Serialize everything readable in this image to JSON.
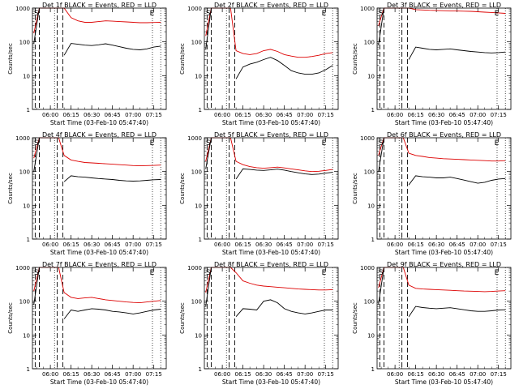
{
  "colors": {
    "events": "#000000",
    "lld": "#dd0000",
    "axis": "#000000"
  },
  "chart_data": [
    {
      "type": "line",
      "title": "Det 1f BLACK = Events, RED = LLD",
      "xlabel": "Start Time (03-Feb-10 05:47:40)",
      "ylabel": "Counts/sec",
      "y_scale": "log",
      "ylim": [
        1,
        1000
      ],
      "y_ticks": [
        "1",
        "10",
        "100",
        "1000"
      ],
      "x_ticks": [
        "06:00",
        "06:15",
        "06:30",
        "06:45",
        "07:00",
        "07:15"
      ],
      "markers": [
        "S",
        "E"
      ],
      "x": [
        "05:48",
        "05:52",
        "06:02",
        "06:06",
        "06:10",
        "06:15",
        "06:20",
        "06:25",
        "06:30",
        "06:35",
        "06:40",
        "06:45",
        "06:50",
        "06:55",
        "07:00",
        "07:05",
        "07:10",
        "07:15",
        "07:20"
      ],
      "series": [
        {
          "name": "LLD",
          "values": [
            180,
            1000,
            1000,
            1000,
            1000,
            520,
            420,
            380,
            380,
            400,
            420,
            410,
            400,
            390,
            380,
            370,
            370,
            375,
            380
          ]
        },
        {
          "name": "Events",
          "values": [
            90,
            1000,
            null,
            null,
            40,
            90,
            85,
            80,
            78,
            82,
            88,
            80,
            72,
            65,
            60,
            58,
            62,
            70,
            75
          ]
        }
      ]
    },
    {
      "type": "line",
      "title": "Det 2f BLACK = Events, RED = LLD",
      "xlabel": "Start Time (03-Feb-10 05:47:40)",
      "ylabel": "Counts/sec",
      "y_scale": "log",
      "ylim": [
        1,
        1000
      ],
      "y_ticks": [
        "1",
        "10",
        "100",
        "1000"
      ],
      "x_ticks": [
        "06:00",
        "06:15",
        "06:30",
        "06:45",
        "07:00",
        "07:15"
      ],
      "markers": [
        "S",
        "E"
      ],
      "x": [
        "05:48",
        "05:52",
        "06:02",
        "06:06",
        "06:10",
        "06:15",
        "06:20",
        "06:25",
        "06:30",
        "06:35",
        "06:40",
        "06:45",
        "06:50",
        "06:55",
        "07:00",
        "07:05",
        "07:10",
        "07:15",
        "07:20"
      ],
      "series": [
        {
          "name": "LLD",
          "values": [
            150,
            1000,
            1000,
            1000,
            55,
            45,
            42,
            45,
            55,
            60,
            52,
            42,
            38,
            35,
            35,
            37,
            40,
            45,
            48
          ]
        },
        {
          "name": "Events",
          "values": [
            60,
            1000,
            null,
            null,
            8,
            18,
            22,
            25,
            30,
            35,
            28,
            20,
            14,
            12,
            11,
            11,
            12,
            15,
            20
          ]
        }
      ]
    },
    {
      "type": "line",
      "title": "Det 3f BLACK = Events, RED = LLD",
      "xlabel": "Start Time (03-Feb-10 05:47:40)",
      "ylabel": "Counts/sec",
      "y_scale": "log",
      "ylim": [
        1,
        1000
      ],
      "y_ticks": [
        "1",
        "10",
        "100",
        "1000"
      ],
      "x_ticks": [
        "06:00",
        "06:15",
        "06:30",
        "06:45",
        "07:00",
        "07:15"
      ],
      "markers": [
        "S",
        "E"
      ],
      "x": [
        "05:48",
        "05:52",
        "06:02",
        "06:06",
        "06:10",
        "06:15",
        "06:20",
        "06:25",
        "06:30",
        "06:35",
        "06:40",
        "06:45",
        "06:50",
        "06:55",
        "07:00",
        "07:05",
        "07:10",
        "07:15",
        "07:20"
      ],
      "series": [
        {
          "name": "LLD",
          "values": [
            300,
            1000,
            1000,
            1000,
            1000,
            900,
            880,
            860,
            850,
            840,
            830,
            820,
            810,
            800,
            780,
            760,
            740,
            720,
            700
          ]
        },
        {
          "name": "Events",
          "values": [
            80,
            1000,
            null,
            null,
            30,
            70,
            65,
            60,
            58,
            60,
            62,
            58,
            55,
            52,
            50,
            48,
            47,
            48,
            50
          ]
        }
      ]
    },
    {
      "type": "line",
      "title": "Det 4f BLACK = Events, RED = LLD",
      "xlabel": "Start Time (03-Feb-10 05:47:40)",
      "ylabel": "Counts/sec",
      "y_scale": "log",
      "ylim": [
        1,
        1000
      ],
      "y_ticks": [
        "1",
        "10",
        "100",
        "1000"
      ],
      "x_ticks": [
        "06:00",
        "06:15",
        "06:30",
        "06:45",
        "07:00",
        "07:15"
      ],
      "markers": [
        "S",
        "E"
      ],
      "x": [
        "05:48",
        "05:52",
        "06:02",
        "06:06",
        "06:10",
        "06:15",
        "06:20",
        "06:25",
        "06:30",
        "06:35",
        "06:40",
        "06:45",
        "06:50",
        "06:55",
        "07:00",
        "07:05",
        "07:10",
        "07:15",
        "07:20"
      ],
      "series": [
        {
          "name": "LLD",
          "values": [
            250,
            1000,
            1000,
            1000,
            300,
            220,
            200,
            185,
            180,
            175,
            170,
            165,
            160,
            155,
            150,
            148,
            150,
            152,
            155
          ]
        },
        {
          "name": "Events",
          "values": [
            100,
            1000,
            null,
            null,
            50,
            75,
            70,
            68,
            65,
            62,
            60,
            58,
            55,
            53,
            52,
            53,
            55,
            57,
            58
          ]
        }
      ]
    },
    {
      "type": "line",
      "title": "Det 5f BLACK = Events, RED = LLD",
      "xlabel": "Start Time (03-Feb-10 05:47:40)",
      "ylabel": "Counts/sec",
      "y_scale": "log",
      "ylim": [
        1,
        1000
      ],
      "y_ticks": [
        "1",
        "10",
        "100",
        "1000"
      ],
      "x_ticks": [
        "06:00",
        "06:15",
        "06:30",
        "06:45",
        "07:00",
        "07:15"
      ],
      "markers": [
        "S",
        "E"
      ],
      "x": [
        "05:48",
        "05:52",
        "06:02",
        "06:06",
        "06:10",
        "06:15",
        "06:20",
        "06:25",
        "06:30",
        "06:35",
        "06:40",
        "06:45",
        "06:50",
        "06:55",
        "07:00",
        "07:05",
        "07:10",
        "07:15",
        "07:20"
      ],
      "series": [
        {
          "name": "LLD",
          "values": [
            200,
            1000,
            1000,
            1000,
            200,
            160,
            140,
            130,
            125,
            130,
            135,
            128,
            120,
            112,
            105,
            100,
            102,
            108,
            115
          ]
        },
        {
          "name": "Events",
          "values": [
            120,
            1000,
            null,
            null,
            60,
            120,
            115,
            110,
            108,
            112,
            118,
            110,
            100,
            92,
            85,
            82,
            84,
            90,
            95
          ]
        }
      ]
    },
    {
      "type": "line",
      "title": "Det 6f BLACK = Events, RED = LLD",
      "xlabel": "Start Time (03-Feb-10 05:47:40)",
      "ylabel": "Counts/sec",
      "y_scale": "log",
      "ylim": [
        1,
        1000
      ],
      "y_ticks": [
        "1",
        "10",
        "100",
        "1000"
      ],
      "x_ticks": [
        "06:00",
        "06:15",
        "06:30",
        "06:45",
        "07:00",
        "07:15"
      ],
      "markers": [
        "S",
        "E"
      ],
      "x": [
        "05:48",
        "05:52",
        "06:02",
        "06:06",
        "06:10",
        "06:15",
        "06:20",
        "06:25",
        "06:30",
        "06:35",
        "06:40",
        "06:45",
        "06:50",
        "06:55",
        "07:00",
        "07:05",
        "07:10",
        "07:15",
        "07:20"
      ],
      "series": [
        {
          "name": "LLD",
          "values": [
            300,
            1000,
            1000,
            1000,
            350,
            300,
            280,
            260,
            250,
            240,
            235,
            230,
            225,
            220,
            215,
            210,
            205,
            205,
            210
          ]
        },
        {
          "name": "Events",
          "values": [
            100,
            1000,
            null,
            null,
            40,
            75,
            70,
            68,
            65,
            65,
            68,
            62,
            56,
            50,
            45,
            48,
            55,
            60,
            62
          ]
        }
      ]
    },
    {
      "type": "line",
      "title": "Det 7f BLACK = Events, RED = LLD",
      "xlabel": "Start Time (03-Feb-10 05:47:40)",
      "ylabel": "Counts/sec",
      "y_scale": "log",
      "ylim": [
        1,
        1000
      ],
      "y_ticks": [
        "1",
        "10",
        "100",
        "1000"
      ],
      "x_ticks": [
        "06:00",
        "06:15",
        "06:30",
        "06:45",
        "07:00",
        "07:15"
      ],
      "markers": [
        "S",
        "E"
      ],
      "x": [
        "05:48",
        "05:52",
        "06:02",
        "06:06",
        "06:10",
        "06:15",
        "06:20",
        "06:25",
        "06:30",
        "06:35",
        "06:40",
        "06:45",
        "06:50",
        "06:55",
        "07:00",
        "07:05",
        "07:10",
        "07:15",
        "07:20"
      ],
      "series": [
        {
          "name": "LLD",
          "values": [
            200,
            1000,
            1000,
            1000,
            180,
            130,
            120,
            125,
            130,
            120,
            110,
            105,
            100,
            95,
            92,
            90,
            95,
            100,
            105
          ]
        },
        {
          "name": "Events",
          "values": [
            80,
            1000,
            null,
            null,
            30,
            55,
            50,
            55,
            60,
            58,
            55,
            50,
            48,
            45,
            42,
            45,
            50,
            55,
            58
          ]
        }
      ]
    },
    {
      "type": "line",
      "title": "Det 8f BLACK = Events, RED = LLD",
      "xlabel": "Start Time (03-Feb-10 05:47:40)",
      "ylabel": "Counts/sec",
      "y_scale": "log",
      "ylim": [
        1,
        1000
      ],
      "y_ticks": [
        "1",
        "10",
        "100",
        "1000"
      ],
      "x_ticks": [
        "06:00",
        "06:15",
        "06:30",
        "06:45",
        "07:00",
        "07:15"
      ],
      "markers": [
        "S",
        "E"
      ],
      "x": [
        "05:48",
        "05:52",
        "06:02",
        "06:06",
        "06:10",
        "06:15",
        "06:20",
        "06:25",
        "06:30",
        "06:35",
        "06:40",
        "06:45",
        "06:50",
        "06:55",
        "07:00",
        "07:05",
        "07:10",
        "07:15",
        "07:20"
      ],
      "series": [
        {
          "name": "LLD",
          "values": [
            180,
            1000,
            1000,
            1000,
            700,
            400,
            340,
            300,
            280,
            270,
            260,
            250,
            240,
            230,
            225,
            220,
            215,
            215,
            220
          ]
        },
        {
          "name": "Events",
          "values": [
            70,
            1000,
            null,
            null,
            35,
            60,
            58,
            55,
            100,
            110,
            90,
            60,
            50,
            45,
            42,
            45,
            50,
            55,
            55
          ]
        }
      ]
    },
    {
      "type": "line",
      "title": "Det 9f BLACK = Events, RED = LLD",
      "xlabel": "Start Time (03-Feb-10 05:47:40)",
      "ylabel": "Counts/sec",
      "y_scale": "log",
      "ylim": [
        1,
        1000
      ],
      "y_ticks": [
        "1",
        "10",
        "100",
        "1000"
      ],
      "x_ticks": [
        "06:00",
        "06:15",
        "06:30",
        "06:45",
        "07:00",
        "07:15"
      ],
      "markers": [
        "S",
        "E"
      ],
      "x": [
        "05:48",
        "05:52",
        "06:02",
        "06:06",
        "06:10",
        "06:15",
        "06:20",
        "06:25",
        "06:30",
        "06:35",
        "06:40",
        "06:45",
        "06:50",
        "06:55",
        "07:00",
        "07:05",
        "07:10",
        "07:15",
        "07:20"
      ],
      "series": [
        {
          "name": "LLD",
          "values": [
            250,
            1000,
            1000,
            1000,
            300,
            240,
            230,
            225,
            220,
            215,
            210,
            205,
            200,
            198,
            195,
            192,
            195,
            200,
            205
          ]
        },
        {
          "name": "Events",
          "values": [
            80,
            1000,
            null,
            null,
            35,
            70,
            65,
            62,
            60,
            62,
            64,
            60,
            56,
            52,
            50,
            50,
            52,
            55,
            56
          ]
        }
      ]
    }
  ]
}
